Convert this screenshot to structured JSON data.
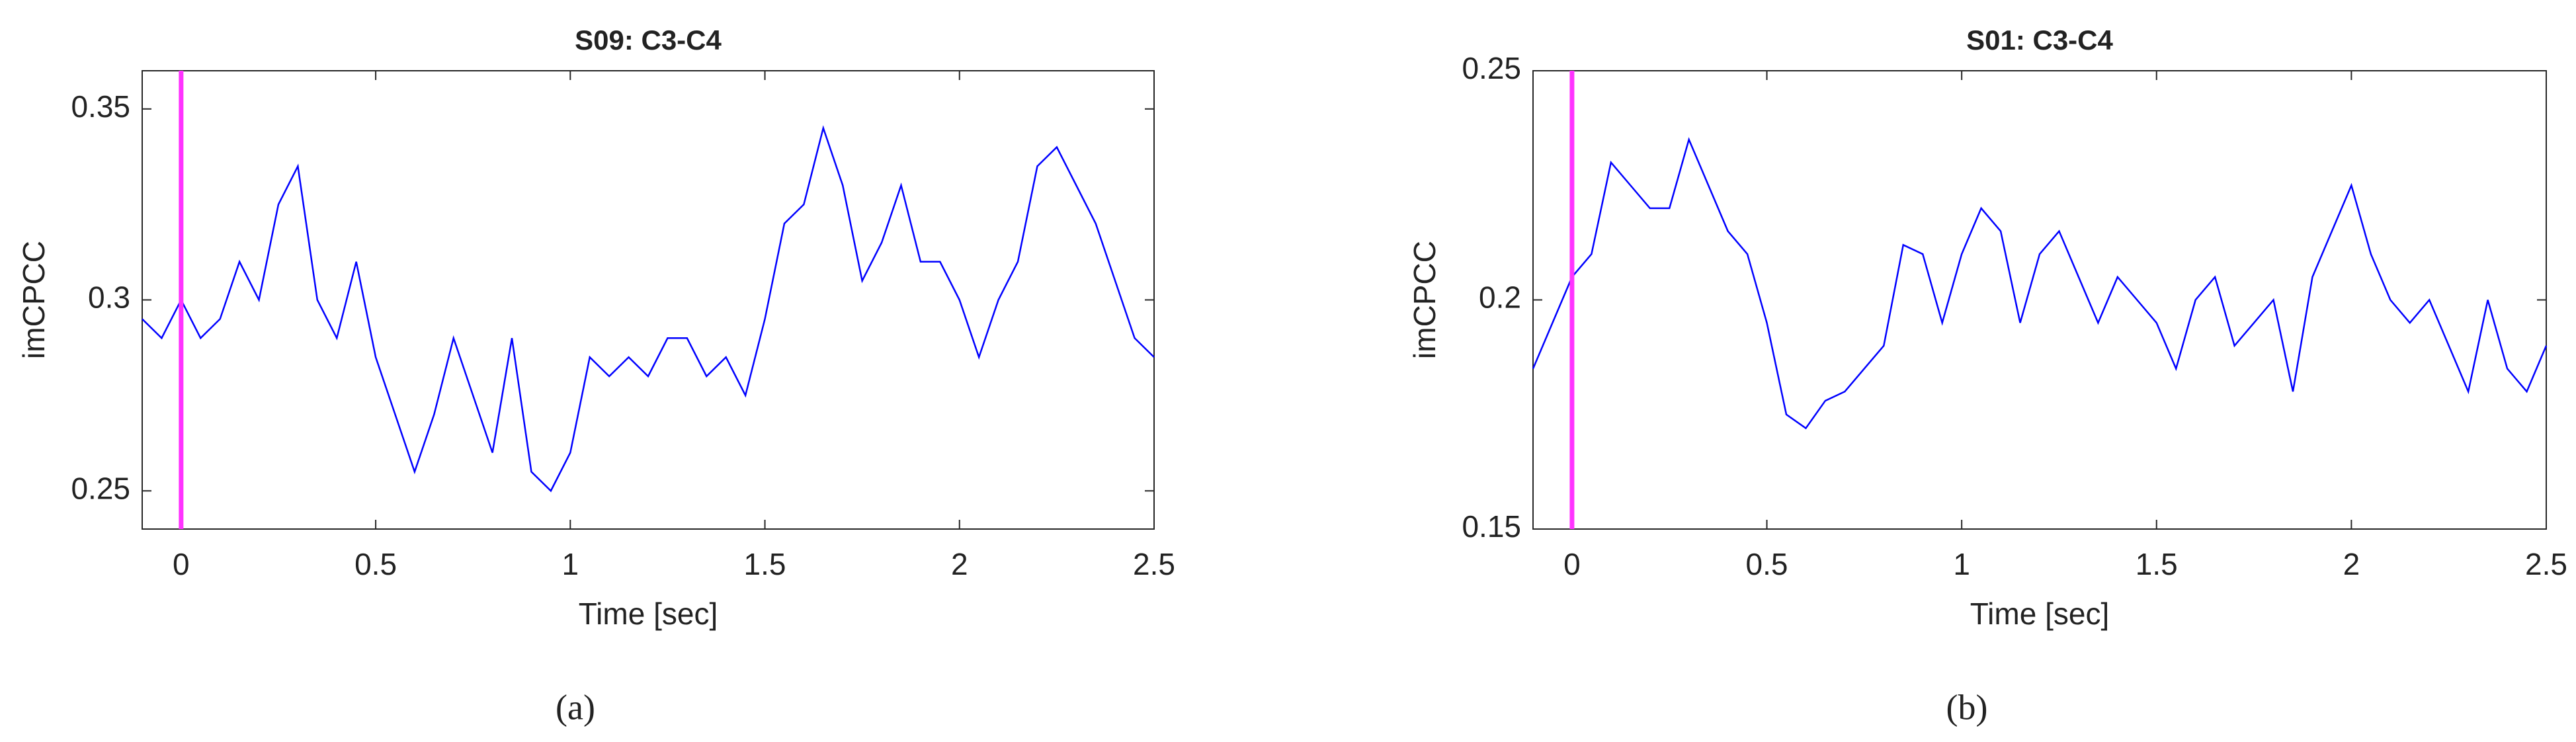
{
  "chart_data": [
    {
      "type": "line",
      "title": "S09: C3-C4",
      "xlabel": "Time [sec]",
      "ylabel": "imCPCC",
      "caption": "(a)",
      "x": [
        -0.1,
        -0.05,
        0,
        0.05,
        0.1,
        0.15,
        0.2,
        0.25,
        0.3,
        0.35,
        0.4,
        0.45,
        0.5,
        0.55,
        0.6,
        0.65,
        0.7,
        0.75,
        0.8,
        0.85,
        0.9,
        0.95,
        1,
        1.05,
        1.1,
        1.15,
        1.2,
        1.25,
        1.3,
        1.35,
        1.4,
        1.45,
        1.5,
        1.55,
        1.6,
        1.65,
        1.7,
        1.75,
        1.8,
        1.85,
        1.9,
        1.95,
        2,
        2.05,
        2.1,
        2.15,
        2.2,
        2.25,
        2.3,
        2.35,
        2.4,
        2.45,
        2.5
      ],
      "series": [
        {
          "color": "#0000ff",
          "values": [
            0.295,
            0.29,
            0.3,
            0.29,
            0.295,
            0.31,
            0.3,
            0.325,
            0.335,
            0.3,
            0.29,
            0.31,
            0.285,
            0.27,
            0.255,
            0.27,
            0.29,
            0.275,
            0.26,
            0.29,
            0.255,
            0.25,
            0.26,
            0.285,
            0.28,
            0.285,
            0.28,
            0.29,
            0.29,
            0.28,
            0.285,
            0.275,
            0.295,
            0.32,
            0.325,
            0.345,
            0.33,
            0.305,
            0.315,
            0.33,
            0.31,
            0.31,
            0.3,
            0.285,
            0.3,
            0.31,
            0.335,
            0.34,
            0.33,
            0.32,
            0.305,
            0.29,
            0.285
          ]
        }
      ],
      "vline": {
        "x": 0,
        "color": "#ff33ff"
      },
      "xlim": [
        -0.1,
        2.5
      ],
      "xticks": [
        0,
        0.5,
        1,
        1.5,
        2,
        2.5
      ],
      "ylim": [
        0.24,
        0.36
      ],
      "yticks": [
        0.25,
        0.3,
        0.35
      ]
    },
    {
      "type": "line",
      "title": "S01: C3-C4",
      "xlabel": "Time [sec]",
      "ylabel": "imCPCC",
      "caption": "(b)",
      "x": [
        -0.1,
        -0.05,
        0,
        0.05,
        0.1,
        0.15,
        0.2,
        0.25,
        0.3,
        0.35,
        0.4,
        0.45,
        0.5,
        0.55,
        0.6,
        0.65,
        0.7,
        0.75,
        0.8,
        0.85,
        0.9,
        0.95,
        1,
        1.05,
        1.1,
        1.15,
        1.2,
        1.25,
        1.3,
        1.35,
        1.4,
        1.45,
        1.5,
        1.55,
        1.6,
        1.65,
        1.7,
        1.75,
        1.8,
        1.85,
        1.9,
        1.95,
        2,
        2.05,
        2.1,
        2.15,
        2.2,
        2.25,
        2.3,
        2.35,
        2.4,
        2.45,
        2.5
      ],
      "series": [
        {
          "color": "#0000ff",
          "values": [
            0.185,
            0.195,
            0.205,
            0.21,
            0.23,
            0.225,
            0.22,
            0.22,
            0.235,
            0.225,
            0.215,
            0.21,
            0.195,
            0.175,
            0.172,
            0.178,
            0.18,
            0.185,
            0.19,
            0.212,
            0.21,
            0.195,
            0.21,
            0.22,
            0.215,
            0.195,
            0.21,
            0.215,
            0.205,
            0.195,
            0.205,
            0.2,
            0.195,
            0.185,
            0.2,
            0.205,
            0.19,
            0.195,
            0.2,
            0.18,
            0.205,
            0.215,
            0.225,
            0.21,
            0.2,
            0.195,
            0.2,
            0.19,
            0.18,
            0.2,
            0.185,
            0.18,
            0.19
          ]
        }
      ],
      "vline": {
        "x": 0,
        "color": "#ff33ff"
      },
      "xlim": [
        -0.1,
        2.5
      ],
      "xticks": [
        0,
        0.5,
        1,
        1.5,
        2,
        2.5
      ],
      "ylim": [
        0.15,
        0.25
      ],
      "yticks": [
        0.15,
        0.2,
        0.25
      ]
    }
  ]
}
